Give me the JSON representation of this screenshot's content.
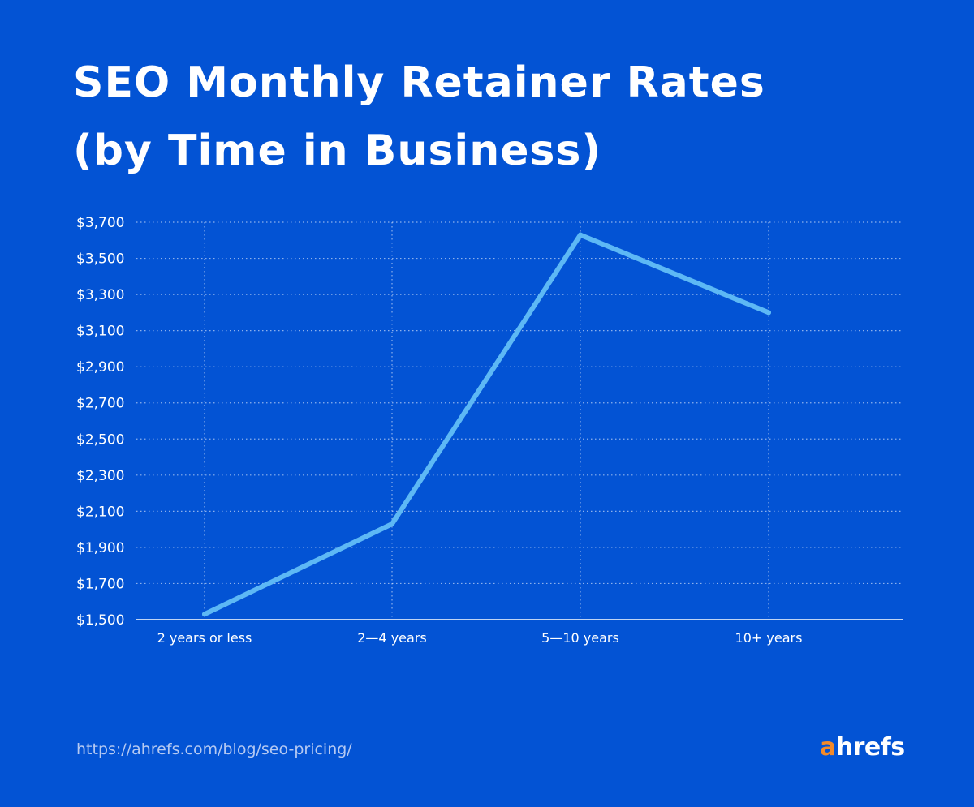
{
  "title_lines": [
    "SEO Monthly Retainer Rates",
    "(by Time in Business)"
  ],
  "footer": {
    "url": "https://ahrefs.com/blog/seo-pricing/"
  },
  "logo": {
    "first": "a",
    "rest": "hrefs"
  },
  "colors": {
    "background": "#0353d4",
    "line": "#5db8f5",
    "text": "#ffffff",
    "logo_accent": "#f38a2a"
  },
  "chart_data": {
    "type": "line",
    "title": "SEO Monthly Retainer Rates (by Time in Business)",
    "xlabel": "",
    "ylabel": "",
    "categories": [
      "2 years or less",
      "2—4 years",
      "5—10 years",
      "10+ years"
    ],
    "series": [
      {
        "values": [
          1530,
          2030,
          3630,
          3200
        ]
      }
    ],
    "ylim": [
      1500,
      3700
    ],
    "yticks": [
      1500,
      1700,
      1900,
      2100,
      2300,
      2500,
      2700,
      2900,
      3100,
      3300,
      3500,
      3700
    ],
    "ytick_labels": [
      "$1,500",
      "$1,700",
      "$1,900",
      "$2,100",
      "$2,300",
      "$2,500",
      "$2,700",
      "$2,900",
      "$3,100",
      "$3,300",
      "$3,500",
      "$3,700"
    ],
    "grid": true,
    "legend": "none"
  }
}
